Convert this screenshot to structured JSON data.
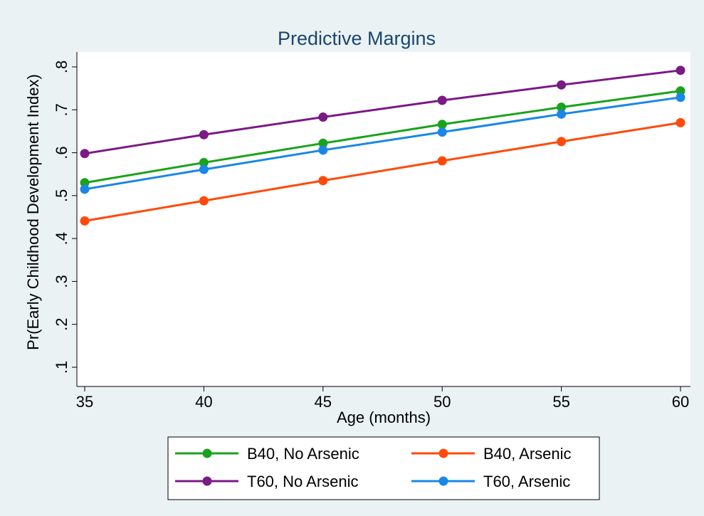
{
  "chart_data": {
    "type": "line",
    "title": "Predictive Margins",
    "xlabel": "Age (months)",
    "ylabel": "Pr(Early Childhood Development Index)",
    "x": [
      35,
      40,
      45,
      50,
      55,
      60
    ],
    "xticks": [
      "35",
      "40",
      "45",
      "50",
      "55",
      "60"
    ],
    "xlim": [
      35,
      60
    ],
    "yticks": [
      0.1,
      0.2,
      0.3,
      0.4,
      0.5,
      0.6,
      0.7,
      0.8
    ],
    "yticklabels": [
      ".1",
      ".2",
      ".3",
      ".4",
      ".5",
      ".6",
      ".7",
      ".8"
    ],
    "ylim": [
      0.1,
      0.8
    ],
    "grid": false,
    "legend_position": "bottom",
    "series": [
      {
        "name": "B40, No Arsenic",
        "color": "#1aa31a",
        "values": [
          0.53,
          0.577,
          0.622,
          0.666,
          0.706,
          0.744
        ]
      },
      {
        "name": "B40, Arsenic",
        "color": "#ff4a0a",
        "values": [
          0.441,
          0.488,
          0.535,
          0.581,
          0.626,
          0.67
        ]
      },
      {
        "name": "T60, No Arsenic",
        "color": "#7a1a85",
        "values": [
          0.598,
          0.642,
          0.683,
          0.722,
          0.758,
          0.792
        ]
      },
      {
        "name": "T60, Arsenic",
        "color": "#1a87e6",
        "values": [
          0.515,
          0.561,
          0.606,
          0.648,
          0.69,
          0.729
        ]
      }
    ]
  }
}
